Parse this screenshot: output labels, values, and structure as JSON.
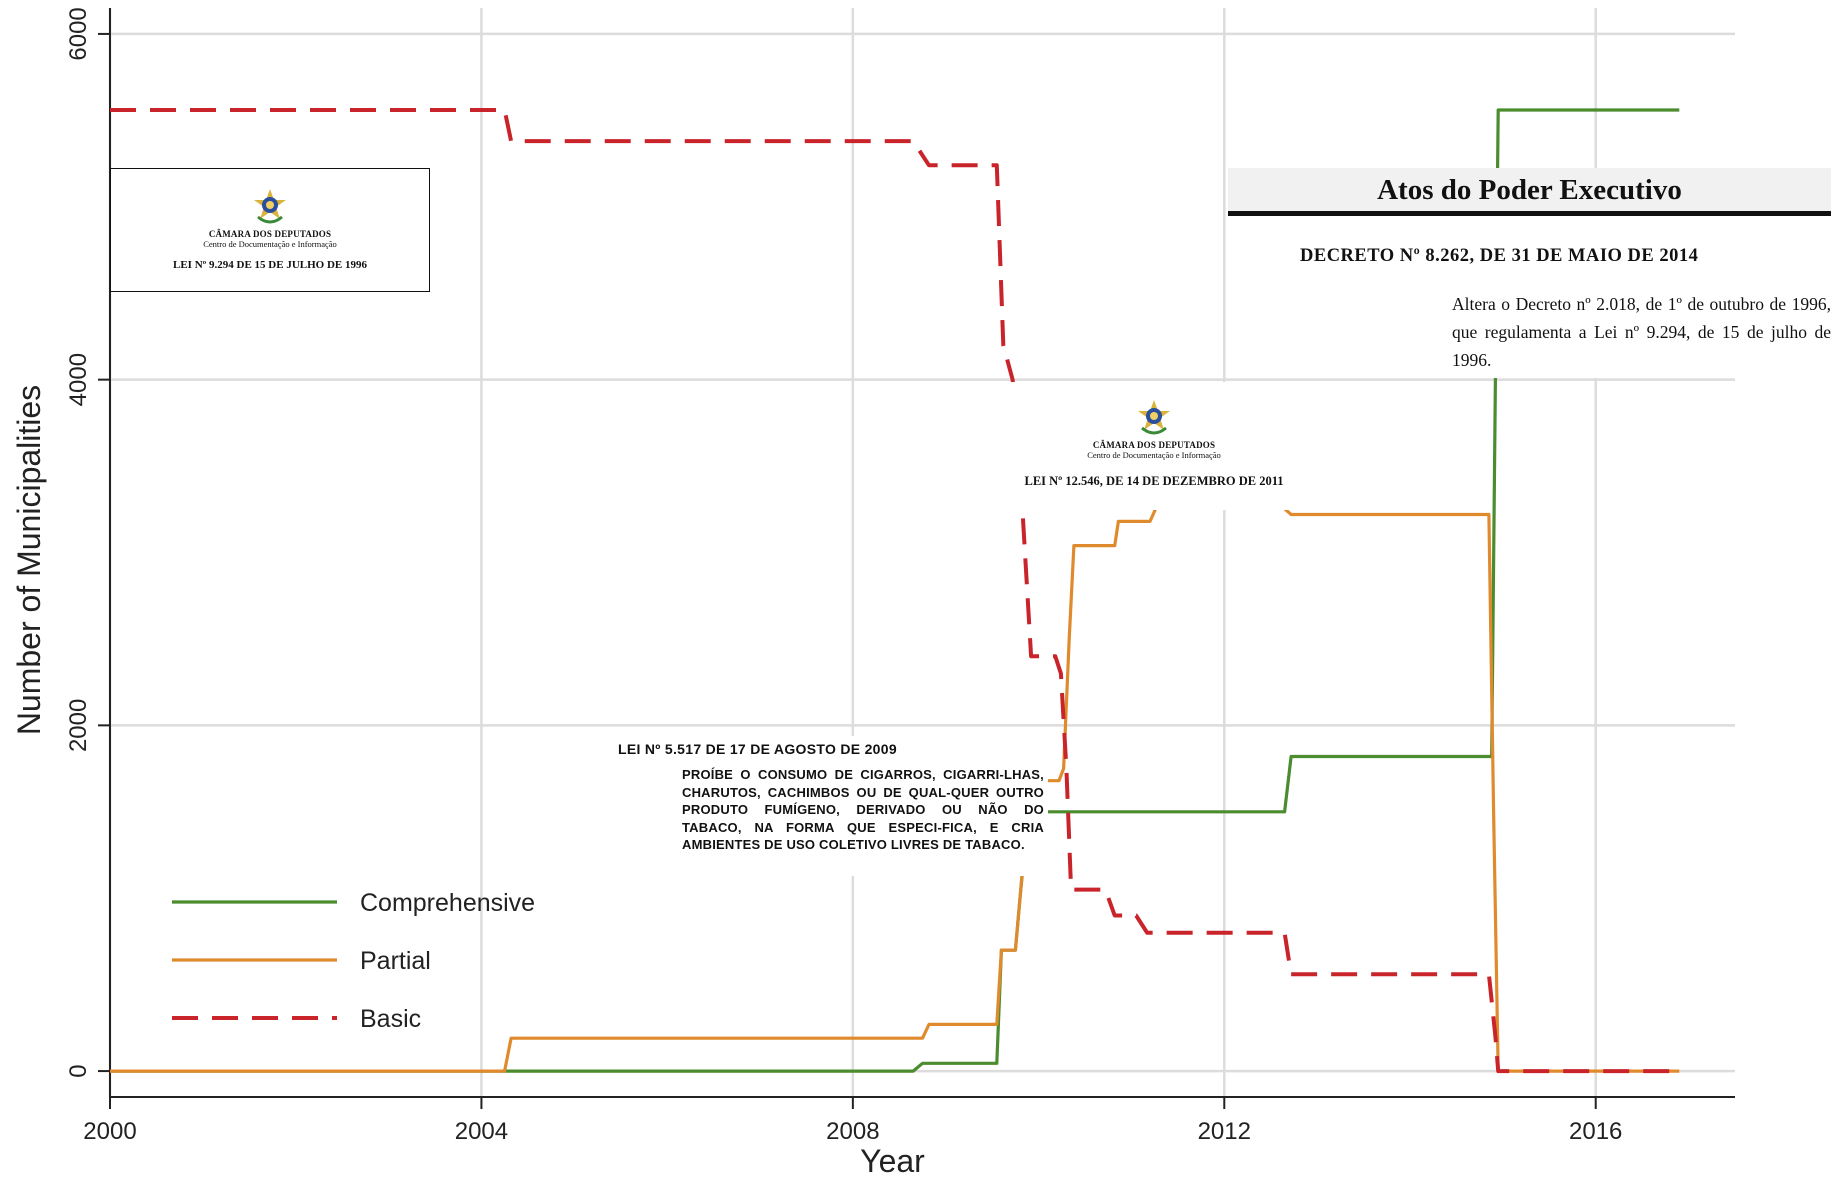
{
  "chart_data": {
    "type": "line",
    "xlabel": "Year",
    "ylabel": "Number of Municipalities",
    "xlim": [
      2000,
      17.5
    ],
    "xlim_note": "",
    "x_range": [
      2000,
      2017.5
    ],
    "ylim": [
      -150,
      6150
    ],
    "x_ticks": [
      2000,
      2004,
      2008,
      2012,
      2016
    ],
    "y_ticks": [
      0,
      2000,
      4000,
      6000
    ],
    "grid": true,
    "legend_position": "bottom-left",
    "series": [
      {
        "name": "Comprehensive",
        "color": "#4a8c2e",
        "style": "solid",
        "points": [
          [
            2000,
            0
          ],
          [
            2008.65,
            0
          ],
          [
            2008.75,
            45
          ],
          [
            2009.55,
            45
          ],
          [
            2009.6,
            700
          ],
          [
            2009.75,
            700
          ],
          [
            2009.8,
            1000
          ],
          [
            2009.88,
            1450
          ],
          [
            2009.95,
            1500
          ],
          [
            2012.65,
            1500
          ],
          [
            2012.72,
            1820
          ],
          [
            2014.88,
            1820
          ],
          [
            2014.92,
            4000
          ],
          [
            2014.95,
            5560
          ],
          [
            2016.9,
            5560
          ]
        ]
      },
      {
        "name": "Partial",
        "color": "#e08a2e",
        "style": "solid",
        "points": [
          [
            2000,
            0
          ],
          [
            2004.25,
            0
          ],
          [
            2004.32,
            190
          ],
          [
            2008.75,
            190
          ],
          [
            2008.82,
            270
          ],
          [
            2009.55,
            270
          ],
          [
            2009.6,
            700
          ],
          [
            2009.75,
            700
          ],
          [
            2009.8,
            1000
          ],
          [
            2009.88,
            1500
          ],
          [
            2009.92,
            1680
          ],
          [
            2010.22,
            1680
          ],
          [
            2010.27,
            1750
          ],
          [
            2010.33,
            2500
          ],
          [
            2010.38,
            3040
          ],
          [
            2010.82,
            3040
          ],
          [
            2010.86,
            3180
          ],
          [
            2011.2,
            3180
          ],
          [
            2011.3,
            3300
          ],
          [
            2012.55,
            3300
          ],
          [
            2012.72,
            3220
          ],
          [
            2014.85,
            3220
          ],
          [
            2014.9,
            1500
          ],
          [
            2014.95,
            0
          ],
          [
            2016.9,
            0
          ]
        ]
      },
      {
        "name": "Basic",
        "color": "#c8242a",
        "style": "dashed",
        "points": [
          [
            2000,
            5560
          ],
          [
            2004.25,
            5560
          ],
          [
            2004.32,
            5380
          ],
          [
            2008.65,
            5380
          ],
          [
            2008.82,
            5240
          ],
          [
            2009.55,
            5240
          ],
          [
            2009.62,
            4200
          ],
          [
            2009.72,
            4000
          ],
          [
            2009.82,
            3300
          ],
          [
            2009.92,
            2400
          ],
          [
            2010.18,
            2400
          ],
          [
            2010.24,
            2300
          ],
          [
            2010.3,
            1750
          ],
          [
            2010.35,
            1050
          ],
          [
            2010.72,
            1050
          ],
          [
            2010.82,
            900
          ],
          [
            2011.05,
            900
          ],
          [
            2011.17,
            800
          ],
          [
            2012.65,
            800
          ],
          [
            2012.72,
            560
          ],
          [
            2014.85,
            560
          ],
          [
            2014.92,
            200
          ],
          [
            2014.95,
            0
          ],
          [
            2016.9,
            0
          ]
        ]
      }
    ]
  },
  "annotations": {
    "lei_9294": {
      "camara": "CÂMARA DOS DEPUTADOS",
      "centro": "Centro de Documentação e Informação",
      "title": "LEI Nº 9.294 DE 15 DE JULHO DE 1996"
    },
    "lei_12546": {
      "camara": "CÂMARA DOS DEPUTADOS",
      "centro": "Centro de Documentação e Informação",
      "title": "LEI Nº 12.546, DE 14 DE DEZEMBRO DE 2011"
    },
    "lei_5517": {
      "title": "LEI Nº 5.517 DE 17 DE AGOSTO DE 2009",
      "body": "PROÍBE O CONSUMO DE CIGARROS, CIGARRI-LHAS, CHARUTOS, CACHIMBOS OU DE QUAL-QUER OUTRO PRODUTO FUMÍGENO, DERIVADO OU NÃO DO TABACO, NA FORMA QUE ESPECI-FICA, E CRIA AMBIENTES DE USO COLETIVO LIVRES DE TABACO."
    },
    "decreto_8262": {
      "header": "Atos do Poder Executivo",
      "title": "DECRETO Nº 8.262, DE 31 DE MAIO DE 2014",
      "ementa": "Altera o Decreto nº 2.018, de 1º de outubro de 1996, que regulamenta a Lei nº 9.294, de 15 de julho de 1996."
    }
  },
  "seal_icon": "brazil-coat-of-arms-icon"
}
